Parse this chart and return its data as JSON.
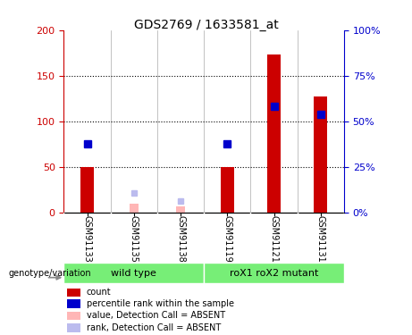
{
  "title": "GDS2769 / 1633581_at",
  "samples": [
    "GSM91133",
    "GSM91135",
    "GSM91138",
    "GSM91119",
    "GSM91121",
    "GSM91131"
  ],
  "count_values": [
    50,
    null,
    null,
    50,
    173,
    127
  ],
  "count_absent_values": [
    null,
    10,
    7,
    null,
    null,
    null
  ],
  "rank_values": [
    75,
    null,
    null,
    75,
    117,
    108
  ],
  "rank_absent_values": [
    null,
    22,
    13,
    null,
    null,
    null
  ],
  "left_ylim": [
    0,
    200
  ],
  "right_ylim": [
    0,
    100
  ],
  "left_yticks": [
    0,
    50,
    100,
    150,
    200
  ],
  "right_yticks": [
    0,
    25,
    50,
    75,
    100
  ],
  "right_yticklabels": [
    "0%",
    "25%",
    "50%",
    "75%",
    "100%"
  ],
  "bar_color": "#CC0000",
  "bar_absent_color": "#FFB6B6",
  "rank_color": "#0000CC",
  "rank_absent_color": "#BBBBEE",
  "background_color": "#ffffff",
  "left_axis_color": "#CC0000",
  "right_axis_color": "#0000CC",
  "green_color": "#77EE77",
  "gray_color": "#CCCCCC",
  "legend_items": [
    {
      "label": "count",
      "color": "#CC0000"
    },
    {
      "label": "percentile rank within the sample",
      "color": "#0000CC"
    },
    {
      "label": "value, Detection Call = ABSENT",
      "color": "#FFB6B6"
    },
    {
      "label": "rank, Detection Call = ABSENT",
      "color": "#BBBBEE"
    }
  ],
  "genotype_label": "genotype/variation",
  "wt_label": "wild type",
  "mut_label": "roX1 roX2 mutant"
}
